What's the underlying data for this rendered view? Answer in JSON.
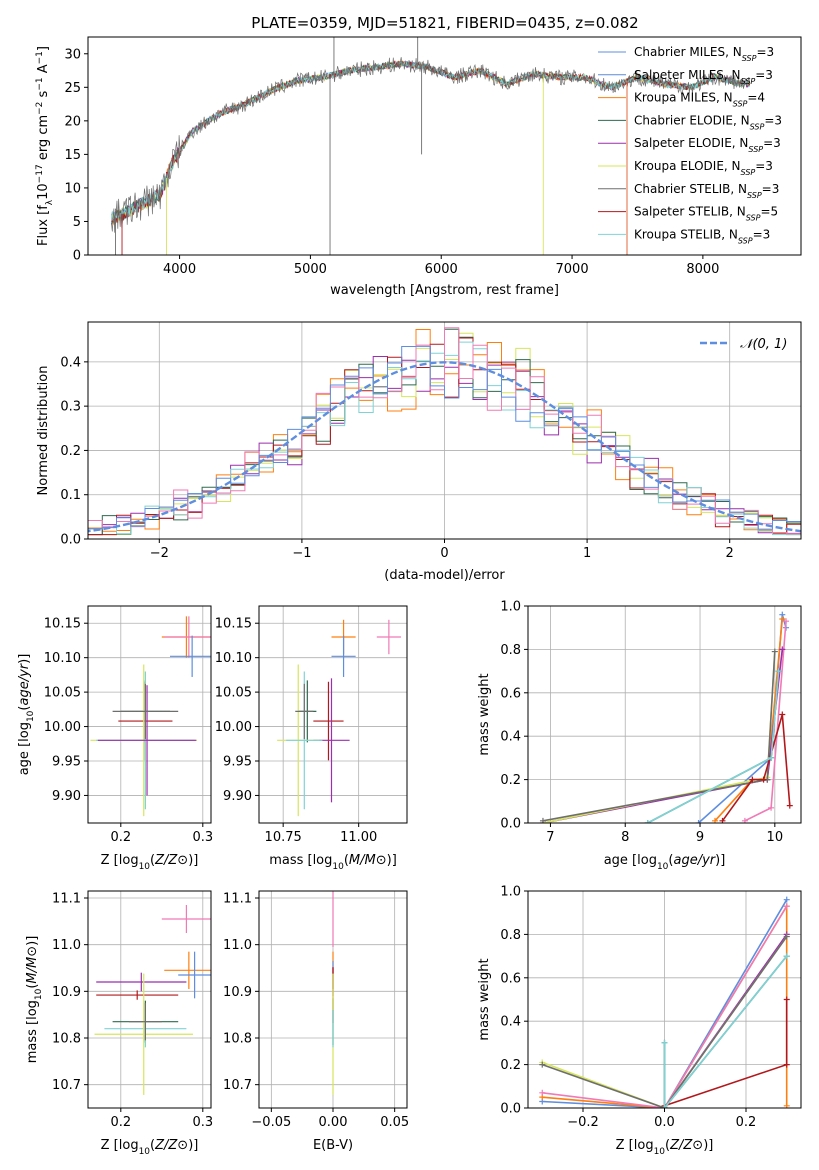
{
  "title": "PLATE=0359, MJD=51821, FIBERID=0435, z=0.082",
  "colors": {
    "chabrier_miles": "#5d8ee0",
    "salpeter_miles": "#5a8cd6",
    "kroupa_miles": "#ff7f0e",
    "chabrier_elodie": "#2e6b4f",
    "salpeter_elodie": "#9b2fae",
    "kroupa_elodie": "#d6e65a",
    "chabrier_stelib": "#6e6e6e",
    "salpeter_stelib": "#b2181b",
    "kroupa_stelib": "#7fd3d6",
    "pink": "#f07ab6",
    "grid": "#b0b0b0",
    "gaussian": "#5d8ee0"
  },
  "chart_data": [
    {
      "id": "spectrum",
      "type": "line",
      "xlabel": "wavelength [Angstrom, rest frame]",
      "ylabel": "Flux [f_λ 10^-17 erg cm^-2 s^-1 A^-1]",
      "xlim": [
        3300,
        8750
      ],
      "ylim": [
        0,
        32.5
      ],
      "xticks": [
        4000,
        5000,
        6000,
        7000,
        8000
      ],
      "yticks": [
        0,
        5,
        10,
        15,
        20,
        25,
        30
      ],
      "grid": false,
      "legend": "top-right",
      "legend_entries": [
        {
          "pre": "Chabrier MILES, N",
          "sub": "SSP",
          "post": "=3",
          "color": "#5d8ee0"
        },
        {
          "pre": "Salpeter MILES, N",
          "sub": "SSP",
          "post": "=3",
          "color": "#5a8cd6"
        },
        {
          "pre": "Kroupa MILES, N",
          "sub": "SSP",
          "post": "=4",
          "color": "#ff7f0e"
        },
        {
          "pre": "Chabrier ELODIE, N",
          "sub": "SSP",
          "post": "=3",
          "color": "#2e6b4f"
        },
        {
          "pre": "Salpeter ELODIE, N",
          "sub": "SSP",
          "post": "=3",
          "color": "#9b2fae"
        },
        {
          "pre": "Kroupa ELODIE, N",
          "sub": "SSP",
          "post": "=3",
          "color": "#d6e65a"
        },
        {
          "pre": "Chabrier STELIB, N",
          "sub": "SSP",
          "post": "=3",
          "color": "#6e6e6e"
        },
        {
          "pre": "Salpeter STELIB, N",
          "sub": "SSP",
          "post": "=5",
          "color": "#b2181b"
        },
        {
          "pre": "Kroupa STELIB, N",
          "sub": "SSP",
          "post": "=3",
          "color": "#7fd3d6"
        }
      ],
      "trend_x": [
        3500,
        3700,
        3850,
        3950,
        4100,
        4300,
        4500,
        4700,
        4900,
        5100,
        5300,
        5500,
        5700,
        5900,
        6100,
        6300,
        6500,
        6700,
        6900,
        7100,
        7300,
        7500,
        7700,
        7900,
        8100,
        8300
      ],
      "trend_y": [
        5.5,
        7.5,
        9,
        14,
        18.5,
        21,
        22.5,
        24.5,
        26,
        26.5,
        27.5,
        28,
        28.5,
        28,
        26.5,
        27.5,
        25.5,
        27,
        26.5,
        26.5,
        25,
        26.5,
        25.5,
        25,
        26.5,
        25.5
      ],
      "spikes": [
        {
          "x": 3510,
          "y": 0
        },
        {
          "x": 3560,
          "y": 0
        },
        {
          "x": 3900,
          "y": 0
        },
        {
          "x": 5150,
          "y": 0
        },
        {
          "x": 5180,
          "y": 32.5
        },
        {
          "x": 5820,
          "y": 32.5
        },
        {
          "x": 5850,
          "y": 15
        },
        {
          "x": 6780,
          "y": 0
        },
        {
          "x": 7420,
          "y": 0
        }
      ]
    },
    {
      "id": "residuals",
      "type": "bar",
      "xlabel": "(data-model)/error",
      "ylabel": "Normed distribution",
      "xlim": [
        -2.5,
        2.5
      ],
      "ylim": [
        0,
        0.49
      ],
      "xticks": [
        -2,
        -1,
        0,
        1,
        2
      ],
      "yticks": [
        0.0,
        0.1,
        0.2,
        0.3,
        0.4
      ],
      "grid": true,
      "legend": "top-right",
      "legend_label": "N(0,1)",
      "bin_width": 0.1,
      "approx_histogram": "step histograms of 9 model fits following N(0,1)",
      "gaussian_peak": 0.4
    },
    {
      "id": "age_vs_Z",
      "type": "scatter",
      "xlabel": "Z [log10(Z/Z⊙)]",
      "ylabel": "age [log10(age/yr)]",
      "xlim": [
        0.16,
        0.31
      ],
      "ylim": [
        9.86,
        10.175
      ],
      "xticks": [
        0.2,
        0.3
      ],
      "yticks": [
        9.9,
        9.95,
        10.0,
        10.05,
        10.1,
        10.15
      ],
      "grid": true,
      "points": [
        {
          "x": 0.28,
          "y": 10.13,
          "xerr": 0.03,
          "yerr": 0.03,
          "color": "#ff7f0e"
        },
        {
          "x": 0.283,
          "y": 10.13,
          "xerr": 0.03,
          "yerr": 0.03,
          "color": "#f07ab6"
        },
        {
          "x": 0.287,
          "y": 10.102,
          "xerr": 0.027,
          "yerr": 0.03,
          "color": "#5d8ee0"
        },
        {
          "x": 0.23,
          "y": 10.022,
          "xerr": 0.03,
          "yerr": 0.045,
          "color": "#2e6b4f"
        },
        {
          "x": 0.23,
          "y": 10.008,
          "xerr": 0.033,
          "yerr": 0.057,
          "color": "#b2181b"
        },
        {
          "x": 0.228,
          "y": 9.98,
          "xerr": 0.065,
          "yerr": 0.11,
          "color": "#d6e65a"
        },
        {
          "x": 0.23,
          "y": 9.98,
          "xerr": 0.06,
          "yerr": 0.1,
          "color": "#7fd3d6"
        },
        {
          "x": 0.232,
          "y": 9.98,
          "xerr": 0.06,
          "yerr": 0.08,
          "color": "#9b2fae"
        },
        {
          "x": 0.23,
          "y": 10.022,
          "xerr": 0.04,
          "yerr": 0.04,
          "color": "#6e6e6e"
        }
      ]
    },
    {
      "id": "age_vs_mass",
      "type": "scatter",
      "xlabel": "mass [log10(M/M⊙)]",
      "ylabel": "",
      "xlim": [
        10.67,
        11.16
      ],
      "ylim": [
        9.86,
        10.175
      ],
      "xticks": [
        10.75,
        11.0
      ],
      "yticks": [
        9.9,
        9.95,
        10.0,
        10.05,
        10.1,
        10.15
      ],
      "grid": true,
      "points": [
        {
          "x": 11.1,
          "y": 10.13,
          "xerr": 0.04,
          "yerr": 0.025,
          "color": "#f07ab6"
        },
        {
          "x": 10.95,
          "y": 10.13,
          "xerr": 0.04,
          "yerr": 0.025,
          "color": "#ff7f0e"
        },
        {
          "x": 10.95,
          "y": 10.102,
          "xerr": 0.04,
          "yerr": 0.03,
          "color": "#5d8ee0"
        },
        {
          "x": 10.83,
          "y": 10.022,
          "xerr": 0.03,
          "yerr": 0.045,
          "color": "#2e6b4f"
        },
        {
          "x": 10.9,
          "y": 10.008,
          "xerr": 0.05,
          "yerr": 0.057,
          "color": "#b2181b"
        },
        {
          "x": 10.91,
          "y": 9.98,
          "xerr": 0.06,
          "yerr": 0.09,
          "color": "#9b2fae"
        },
        {
          "x": 10.8,
          "y": 9.98,
          "xerr": 0.07,
          "yerr": 0.11,
          "color": "#d6e65a"
        },
        {
          "x": 10.82,
          "y": 9.98,
          "xerr": 0.06,
          "yerr": 0.1,
          "color": "#7fd3d6"
        },
        {
          "x": 10.82,
          "y": 10.022,
          "xerr": 0.03,
          "yerr": 0.04,
          "color": "#6e6e6e"
        }
      ]
    },
    {
      "id": "weight_vs_age",
      "type": "line",
      "xlabel": "age [log10(age/yr)]",
      "ylabel": "mass weight",
      "xlim": [
        6.7,
        10.35
      ],
      "ylim": [
        0,
        1.0
      ],
      "xticks": [
        7,
        8,
        9,
        10
      ],
      "yticks": [
        0.0,
        0.2,
        0.4,
        0.6,
        0.8,
        1.0
      ],
      "grid": true,
      "series": [
        {
          "color": "#5d8ee0",
          "x": [
            8.98,
            9.95,
            10.1,
            10.15
          ],
          "y": [
            0.0,
            0.3,
            0.96,
            0.9
          ]
        },
        {
          "color": "#ff7f0e",
          "x": [
            9.2,
            9.7,
            9.9,
            10.1
          ],
          "y": [
            0.01,
            0.2,
            0.2,
            0.94
          ]
        },
        {
          "color": "#f07ab6",
          "x": [
            9.6,
            9.95,
            10.15
          ],
          "y": [
            0.01,
            0.07,
            0.93
          ]
        },
        {
          "color": "#2e6b4f",
          "x": [
            8.3,
            9.95,
            10.05
          ],
          "y": [
            0.0,
            0.3,
            0.7
          ]
        },
        {
          "color": "#9b2fae",
          "x": [
            6.9,
            9.9,
            10.1
          ],
          "y": [
            0.0,
            0.2,
            0.8
          ]
        },
        {
          "color": "#d6e65a",
          "x": [
            6.9,
            9.9,
            10.0
          ],
          "y": [
            0.0,
            0.21,
            0.79
          ]
        },
        {
          "color": "#6e6e6e",
          "x": [
            6.9,
            9.9,
            10.0
          ],
          "y": [
            0.01,
            0.2,
            0.79
          ]
        },
        {
          "color": "#b2181b",
          "x": [
            9.3,
            9.7,
            9.85,
            10.1,
            10.2
          ],
          "y": [
            0.01,
            0.2,
            0.2,
            0.5,
            0.08
          ]
        },
        {
          "color": "#7fd3d6",
          "x": [
            8.3,
            9.95,
            10.05
          ],
          "y": [
            0.0,
            0.3,
            0.7
          ]
        }
      ]
    },
    {
      "id": "mass_vs_Z",
      "type": "scatter",
      "xlabel": "Z [log10(Z/Z⊙)]",
      "ylabel": "mass [log10(M/M⊙)]",
      "xlim": [
        0.16,
        0.31
      ],
      "ylim": [
        10.65,
        11.115
      ],
      "xticks": [
        0.2,
        0.3
      ],
      "yticks": [
        10.7,
        10.8,
        10.9,
        11.0,
        11.1
      ],
      "grid": true,
      "points": [
        {
          "x": 0.28,
          "y": 11.055,
          "xerr": 0.03,
          "yerr": 0.03,
          "color": "#f07ab6"
        },
        {
          "x": 0.283,
          "y": 10.945,
          "xerr": 0.03,
          "yerr": 0.04,
          "color": "#ff7f0e"
        },
        {
          "x": 0.29,
          "y": 10.935,
          "xerr": 0.02,
          "yerr": 0.05,
          "color": "#5d8ee0"
        },
        {
          "x": 0.225,
          "y": 10.92,
          "xerr": 0.055,
          "yerr": 0.02,
          "color": "#9b2fae"
        },
        {
          "x": 0.22,
          "y": 10.892,
          "xerr": 0.05,
          "yerr": 0.01,
          "color": "#b2181b"
        },
        {
          "x": 0.23,
          "y": 10.835,
          "xerr": 0.04,
          "yerr": 0.045,
          "color": "#2e6b4f"
        },
        {
          "x": 0.23,
          "y": 10.82,
          "xerr": 0.05,
          "yerr": 0.04,
          "color": "#7fd3d6"
        },
        {
          "x": 0.228,
          "y": 10.808,
          "xerr": 0.06,
          "yerr": 0.13,
          "color": "#d6e65a"
        },
        {
          "x": 0.23,
          "y": 10.835,
          "xerr": 0.02,
          "yerr": 0.04,
          "color": "#6e6e6e"
        }
      ]
    },
    {
      "id": "mass_vs_EBV",
      "type": "scatter",
      "xlabel": "E(B-V)",
      "ylabel": "",
      "xlim": [
        -0.06,
        0.06
      ],
      "ylim": [
        10.65,
        11.115
      ],
      "xticks": [
        -0.05,
        0.0,
        0.05
      ],
      "yticks": [
        10.7,
        10.8,
        10.9,
        11.0,
        11.1
      ],
      "grid": true,
      "points": [
        {
          "x": 0.0,
          "y": 11.055,
          "xerr": 0,
          "yerr": 0.06,
          "color": "#f07ab6"
        },
        {
          "x": 0.0,
          "y": 10.945,
          "xerr": 0,
          "yerr": 0.04,
          "color": "#ff7f0e"
        },
        {
          "x": 0.0,
          "y": 10.935,
          "xerr": 0,
          "yerr": 0.03,
          "color": "#5d8ee0"
        },
        {
          "x": 0.0,
          "y": 10.92,
          "xerr": 0,
          "yerr": 0.03,
          "color": "#9b2fae"
        },
        {
          "x": 0.0,
          "y": 10.892,
          "xerr": 0,
          "yerr": 0.06,
          "color": "#b2181b"
        },
        {
          "x": 0.0,
          "y": 10.835,
          "xerr": 0,
          "yerr": 0.05,
          "color": "#2e6b4f"
        },
        {
          "x": 0.0,
          "y": 10.808,
          "xerr": 0,
          "yerr": 0.13,
          "color": "#d6e65a"
        },
        {
          "x": 0.0,
          "y": 10.82,
          "xerr": 0,
          "yerr": 0.04,
          "color": "#7fd3d6"
        }
      ]
    },
    {
      "id": "weight_vs_Z",
      "type": "line",
      "xlabel": "Z [log10(Z/Z⊙)]",
      "ylabel": "mass weight",
      "xlim": [
        -0.335,
        0.335
      ],
      "ylim": [
        0,
        1.0
      ],
      "xticks": [
        -0.2,
        0.0,
        0.2
      ],
      "yticks": [
        0.0,
        0.2,
        0.4,
        0.6,
        0.8,
        1.0
      ],
      "grid": true,
      "series": [
        {
          "color": "#5d8ee0",
          "x": [
            -0.3,
            0.0,
            0.3
          ],
          "y": [
            0.03,
            0.0,
            0.96
          ]
        },
        {
          "color": "#ff7f0e",
          "x": [
            -0.3,
            0.0,
            0.3,
            0.3
          ],
          "y": [
            0.05,
            0.0,
            0.93,
            0.01
          ]
        },
        {
          "color": "#f07ab6",
          "x": [
            -0.3,
            0.0,
            0.3
          ],
          "y": [
            0.07,
            0.0,
            0.93
          ]
        },
        {
          "color": "#2e6b4f",
          "x": [
            0.0,
            0.0,
            0.3
          ],
          "y": [
            0.3,
            0.0,
            0.7
          ]
        },
        {
          "color": "#9b2fae",
          "x": [
            0.0,
            0.3
          ],
          "y": [
            0.0,
            0.8
          ]
        },
        {
          "color": "#d6e65a",
          "x": [
            -0.3,
            0.0,
            0.3
          ],
          "y": [
            0.21,
            0.0,
            0.79
          ]
        },
        {
          "color": "#6e6e6e",
          "x": [
            -0.3,
            0.0,
            0.3
          ],
          "y": [
            0.2,
            0.0,
            0.79
          ]
        },
        {
          "color": "#b2181b",
          "x": [
            0.0,
            0.3,
            0.3
          ],
          "y": [
            0.01,
            0.2,
            0.5
          ]
        },
        {
          "color": "#7fd3d6",
          "x": [
            0.0,
            0.0,
            0.3
          ],
          "y": [
            0.3,
            0.0,
            0.7
          ]
        }
      ]
    }
  ]
}
